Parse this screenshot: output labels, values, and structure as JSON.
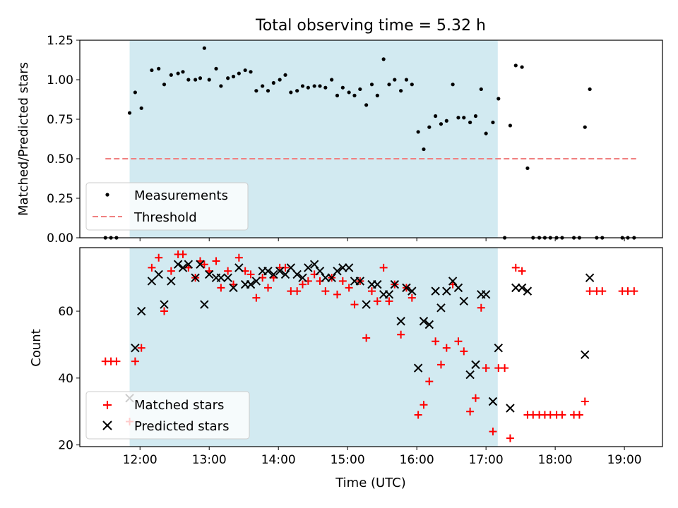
{
  "chart_data": [
    {
      "type": "scatter",
      "title": "Total observing time = 5.32 h",
      "xlabel": "",
      "ylabel": "Matched/Predicted stars",
      "xlim": [
        11.13,
        19.55
      ],
      "ylim": [
        0,
        1.25
      ],
      "yticks": [
        "0.00",
        "0.25",
        "0.50",
        "0.75",
        "1.00",
        "1.25"
      ],
      "grid": false,
      "legend_placement": "lower-left",
      "observing_window": [
        11.85,
        17.17
      ],
      "colors": {
        "window": "#add8e6",
        "threshold": "#f08080",
        "measurements": "#000000"
      },
      "series": [
        {
          "name": "Measurements",
          "marker": "dot",
          "points": [
            [
              11.5,
              0
            ],
            [
              11.58,
              0
            ],
            [
              11.66,
              0
            ],
            [
              11.85,
              0.79
            ],
            [
              11.93,
              0.92
            ],
            [
              12.02,
              0.82
            ],
            [
              12.17,
              1.06
            ],
            [
              12.27,
              1.07
            ],
            [
              12.35,
              0.97
            ],
            [
              12.45,
              1.03
            ],
            [
              12.55,
              1.04
            ],
            [
              12.62,
              1.05
            ],
            [
              12.7,
              1.0
            ],
            [
              12.8,
              1.0
            ],
            [
              12.87,
              1.01
            ],
            [
              12.93,
              1.2
            ],
            [
              13.0,
              1.0
            ],
            [
              13.1,
              1.07
            ],
            [
              13.17,
              0.96
            ],
            [
              13.27,
              1.01
            ],
            [
              13.35,
              1.02
            ],
            [
              13.43,
              1.04
            ],
            [
              13.52,
              1.06
            ],
            [
              13.6,
              1.05
            ],
            [
              13.68,
              0.93
            ],
            [
              13.77,
              0.96
            ],
            [
              13.85,
              0.93
            ],
            [
              13.93,
              0.98
            ],
            [
              14.02,
              1.0
            ],
            [
              14.1,
              1.03
            ],
            [
              14.18,
              0.92
            ],
            [
              14.27,
              0.93
            ],
            [
              14.35,
              0.96
            ],
            [
              14.43,
              0.95
            ],
            [
              14.52,
              0.96
            ],
            [
              14.6,
              0.96
            ],
            [
              14.68,
              0.95
            ],
            [
              14.77,
              1.0
            ],
            [
              14.85,
              0.9
            ],
            [
              14.93,
              0.95
            ],
            [
              15.02,
              0.92
            ],
            [
              15.1,
              0.9
            ],
            [
              15.18,
              0.94
            ],
            [
              15.27,
              0.84
            ],
            [
              15.35,
              0.97
            ],
            [
              15.43,
              0.9
            ],
            [
              15.52,
              1.13
            ],
            [
              15.6,
              0.97
            ],
            [
              15.68,
              1.0
            ],
            [
              15.77,
              0.93
            ],
            [
              15.85,
              1.0
            ],
            [
              15.93,
              0.97
            ],
            [
              16.02,
              0.67
            ],
            [
              16.1,
              0.56
            ],
            [
              16.18,
              0.7
            ],
            [
              16.27,
              0.77
            ],
            [
              16.35,
              0.72
            ],
            [
              16.43,
              0.74
            ],
            [
              16.52,
              0.97
            ],
            [
              16.6,
              0.76
            ],
            [
              16.68,
              0.76
            ],
            [
              16.77,
              0.73
            ],
            [
              16.85,
              0.77
            ],
            [
              16.93,
              0.94
            ],
            [
              17.0,
              0.66
            ],
            [
              17.1,
              0.73
            ],
            [
              17.18,
              0.88
            ],
            [
              17.27,
              0
            ],
            [
              17.35,
              0.71
            ],
            [
              17.43,
              1.09
            ],
            [
              17.52,
              1.08
            ],
            [
              17.6,
              0.44
            ],
            [
              17.68,
              0
            ],
            [
              17.77,
              0
            ],
            [
              17.85,
              0
            ],
            [
              17.93,
              0
            ],
            [
              18.02,
              0
            ],
            [
              18.1,
              0
            ],
            [
              18.27,
              0
            ],
            [
              18.35,
              0
            ],
            [
              18.43,
              0.7
            ],
            [
              18.5,
              0.94
            ],
            [
              18.6,
              0
            ],
            [
              18.68,
              0
            ],
            [
              18.97,
              0
            ],
            [
              19.05,
              0
            ],
            [
              19.14,
              0
            ]
          ]
        },
        {
          "name": "Threshold",
          "marker": "dashed-line",
          "points": [
            [
              11.5,
              0.5
            ],
            [
              19.17,
              0.5
            ]
          ]
        }
      ]
    },
    {
      "type": "scatter",
      "title": "",
      "xlabel": "Time (UTC)",
      "ylabel": "Count",
      "xlim": [
        11.13,
        19.55
      ],
      "ylim": [
        19.5,
        79
      ],
      "yticks": [
        "20",
        "40",
        "60"
      ],
      "xticks": [
        "12:00",
        "13:00",
        "14:00",
        "15:00",
        "16:00",
        "17:00",
        "18:00",
        "19:00"
      ],
      "grid": false,
      "legend_placement": "lower-left",
      "colors": {
        "matched": "#ff0000",
        "predicted": "#000000"
      },
      "series": [
        {
          "name": "Matched stars",
          "marker": "plus",
          "points": [
            [
              11.5,
              45
            ],
            [
              11.58,
              45
            ],
            [
              11.66,
              45
            ],
            [
              11.85,
              27
            ],
            [
              11.93,
              45
            ],
            [
              12.02,
              49
            ],
            [
              12.17,
              73
            ],
            [
              12.27,
              76
            ],
            [
              12.35,
              60
            ],
            [
              12.45,
              72
            ],
            [
              12.55,
              77
            ],
            [
              12.62,
              77
            ],
            [
              12.7,
              73
            ],
            [
              12.8,
              70
            ],
            [
              12.87,
              75
            ],
            [
              12.93,
              74
            ],
            [
              13.0,
              72
            ],
            [
              13.1,
              75
            ],
            [
              13.17,
              67
            ],
            [
              13.27,
              72
            ],
            [
              13.35,
              68
            ],
            [
              13.43,
              76
            ],
            [
              13.52,
              72
            ],
            [
              13.6,
              71
            ],
            [
              13.68,
              64
            ],
            [
              13.77,
              70
            ],
            [
              13.85,
              67
            ],
            [
              13.93,
              70
            ],
            [
              14.02,
              73
            ],
            [
              14.1,
              73
            ],
            [
              14.18,
              66
            ],
            [
              14.27,
              66
            ],
            [
              14.35,
              68
            ],
            [
              14.43,
              69
            ],
            [
              14.52,
              71
            ],
            [
              14.6,
              69
            ],
            [
              14.68,
              66
            ],
            [
              14.77,
              70
            ],
            [
              14.85,
              65
            ],
            [
              14.93,
              69
            ],
            [
              15.02,
              67
            ],
            [
              15.1,
              62
            ],
            [
              15.18,
              69
            ],
            [
              15.27,
              52
            ],
            [
              15.35,
              66
            ],
            [
              15.43,
              63
            ],
            [
              15.52,
              73
            ],
            [
              15.6,
              63
            ],
            [
              15.68,
              68
            ],
            [
              15.77,
              53
            ],
            [
              15.85,
              67
            ],
            [
              15.93,
              64
            ],
            [
              16.02,
              29
            ],
            [
              16.1,
              32
            ],
            [
              16.18,
              39
            ],
            [
              16.27,
              51
            ],
            [
              16.35,
              44
            ],
            [
              16.43,
              49
            ],
            [
              16.52,
              68
            ],
            [
              16.6,
              51
            ],
            [
              16.68,
              48
            ],
            [
              16.77,
              30
            ],
            [
              16.85,
              34
            ],
            [
              16.93,
              61
            ],
            [
              17.0,
              43
            ],
            [
              17.1,
              24
            ],
            [
              17.18,
              43
            ],
            [
              17.27,
              43
            ],
            [
              17.35,
              22
            ],
            [
              17.43,
              73
            ],
            [
              17.52,
              72
            ],
            [
              17.6,
              29
            ],
            [
              17.68,
              29
            ],
            [
              17.77,
              29
            ],
            [
              17.85,
              29
            ],
            [
              17.93,
              29
            ],
            [
              18.02,
              29
            ],
            [
              18.1,
              29
            ],
            [
              18.27,
              29
            ],
            [
              18.35,
              29
            ],
            [
              18.43,
              33
            ],
            [
              18.5,
              66
            ],
            [
              18.6,
              66
            ],
            [
              18.68,
              66
            ],
            [
              18.97,
              66
            ],
            [
              19.05,
              66
            ],
            [
              19.14,
              66
            ]
          ]
        },
        {
          "name": "Predicted stars",
          "marker": "x",
          "points": [
            [
              11.85,
              34
            ],
            [
              11.93,
              49
            ],
            [
              12.02,
              60
            ],
            [
              12.17,
              69
            ],
            [
              12.27,
              71
            ],
            [
              12.35,
              62
            ],
            [
              12.45,
              69
            ],
            [
              12.55,
              74
            ],
            [
              12.62,
              73
            ],
            [
              12.7,
              74
            ],
            [
              12.8,
              70
            ],
            [
              12.87,
              74
            ],
            [
              12.93,
              62
            ],
            [
              13.0,
              71
            ],
            [
              13.1,
              70
            ],
            [
              13.17,
              70
            ],
            [
              13.27,
              70
            ],
            [
              13.35,
              67
            ],
            [
              13.43,
              73
            ],
            [
              13.52,
              68
            ],
            [
              13.6,
              68
            ],
            [
              13.68,
              69
            ],
            [
              13.77,
              72
            ],
            [
              13.85,
              72
            ],
            [
              13.93,
              71
            ],
            [
              14.02,
              72
            ],
            [
              14.1,
              71
            ],
            [
              14.18,
              73
            ],
            [
              14.27,
              71
            ],
            [
              14.35,
              70
            ],
            [
              14.43,
              73
            ],
            [
              14.52,
              74
            ],
            [
              14.6,
              72
            ],
            [
              14.68,
              70
            ],
            [
              14.77,
              70
            ],
            [
              14.85,
              72
            ],
            [
              14.93,
              73
            ],
            [
              15.02,
              73
            ],
            [
              15.1,
              69
            ],
            [
              15.18,
              69
            ],
            [
              15.27,
              62
            ],
            [
              15.35,
              68
            ],
            [
              15.43,
              68
            ],
            [
              15.52,
              65
            ],
            [
              15.6,
              65
            ],
            [
              15.68,
              68
            ],
            [
              15.77,
              57
            ],
            [
              15.85,
              67
            ],
            [
              15.93,
              66
            ],
            [
              16.02,
              43
            ],
            [
              16.1,
              57
            ],
            [
              16.18,
              56
            ],
            [
              16.27,
              66
            ],
            [
              16.35,
              61
            ],
            [
              16.43,
              66
            ],
            [
              16.52,
              69
            ],
            [
              16.6,
              67
            ],
            [
              16.68,
              63
            ],
            [
              16.77,
              41
            ],
            [
              16.85,
              44
            ],
            [
              16.93,
              65
            ],
            [
              17.0,
              65
            ],
            [
              17.1,
              33
            ],
            [
              17.18,
              49
            ],
            [
              17.35,
              31
            ],
            [
              17.43,
              67
            ],
            [
              17.52,
              67
            ],
            [
              17.6,
              66
            ],
            [
              18.43,
              47
            ],
            [
              18.5,
              70
            ]
          ]
        }
      ]
    }
  ]
}
